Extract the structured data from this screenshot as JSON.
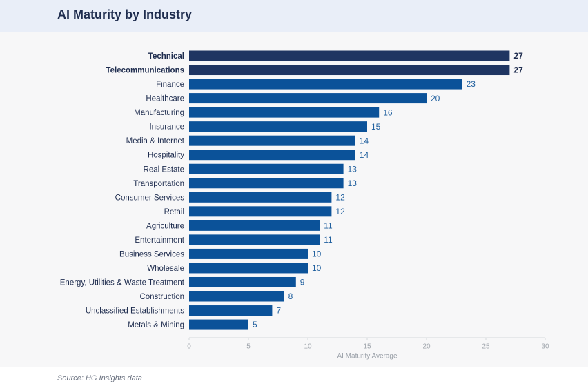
{
  "chart_data": {
    "type": "bar",
    "orientation": "horizontal",
    "title": "AI Maturity by Industry",
    "categories": [
      "Technical",
      "Telecommunications",
      "Finance",
      "Healthcare",
      "Manufacturing",
      "Insurance",
      "Media & Internet",
      "Hospitality",
      "Real Estate",
      "Transportation",
      "Consumer Services",
      "Retail",
      "Agriculture",
      "Entertainment",
      "Business Services",
      "Wholesale",
      "Energy, Utilities & Waste Treatment",
      "Construction",
      "Unclassified Establishments",
      "Metals & Mining"
    ],
    "values": [
      27,
      27,
      23,
      20,
      16,
      15,
      14,
      14,
      13,
      13,
      12,
      12,
      11,
      11,
      10,
      10,
      9,
      8,
      7,
      5
    ],
    "colors": [
      "#1f3562",
      "#1f3562",
      "#0b5299",
      "#0b5299",
      "#0b5299",
      "#0b5299",
      "#0b5299",
      "#0b5299",
      "#0b5299",
      "#0b5299",
      "#0b5299",
      "#0b5299",
      "#0b5299",
      "#0b5299",
      "#0b5299",
      "#0b5299",
      "#0b5299",
      "#0b5299",
      "#0b5299",
      "#0b5299"
    ],
    "highlight_color": "#1f3562",
    "xlabel": "AI Maturity Average",
    "xlim": [
      0,
      30
    ],
    "xticks": [
      0,
      5,
      10,
      15,
      20,
      25,
      30
    ],
    "source": "Source: HG Insights data"
  }
}
